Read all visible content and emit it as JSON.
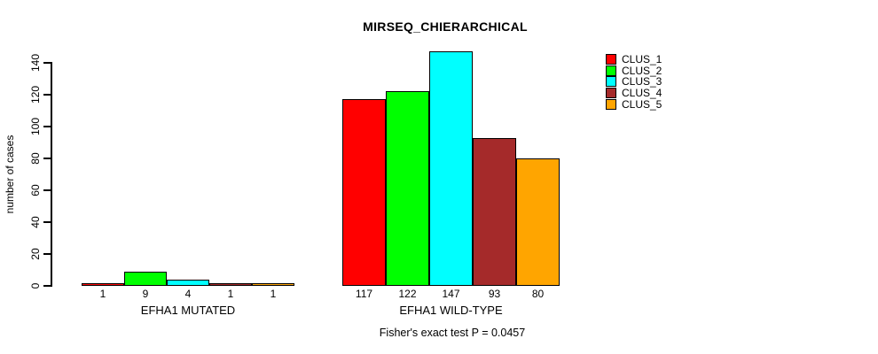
{
  "chart_data": {
    "type": "bar",
    "title": "MIRSEQ_CHIERARCHICAL",
    "ylabel": "number of cases",
    "ylim": [
      0,
      140
    ],
    "yticks": [
      0,
      20,
      40,
      60,
      80,
      100,
      120,
      140
    ],
    "grid": false,
    "legend_position": "top-right",
    "categories": [
      "EFHA1 MUTATED",
      "EFHA1 WILD-TYPE"
    ],
    "series": [
      {
        "name": "CLUS_1",
        "color": "#FF0000",
        "values": [
          1,
          117
        ]
      },
      {
        "name": "CLUS_2",
        "color": "#00FF00",
        "values": [
          9,
          122
        ]
      },
      {
        "name": "CLUS_3",
        "color": "#00FFFF",
        "values": [
          4,
          147
        ]
      },
      {
        "name": "CLUS_4",
        "color": "#A52A2A",
        "values": [
          1,
          93
        ]
      },
      {
        "name": "CLUS_5",
        "color": "#FFA500",
        "values": [
          1,
          80
        ]
      }
    ],
    "bar_value_labels": [
      [
        1,
        9,
        4,
        1,
        1
      ],
      [
        117,
        122,
        147,
        93,
        80
      ]
    ],
    "annotation": "Fisher's exact test P = 0.0457"
  }
}
